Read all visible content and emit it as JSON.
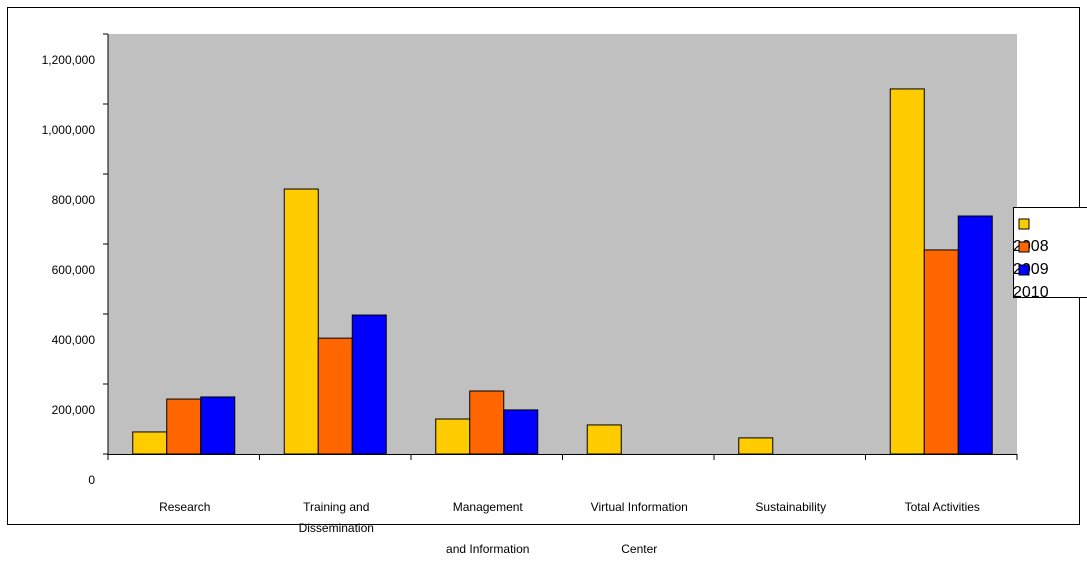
{
  "chart_data": {
    "type": "bar",
    "categories": [
      [
        "Research"
      ],
      [
        "Training and",
        "Dissemination"
      ],
      [
        "Management",
        "and Information"
      ],
      [
        "Virtual Information",
        "Center"
      ],
      [
        "Sustainability"
      ],
      [
        "Total Activities"
      ]
    ],
    "series": [
      {
        "name": "2008",
        "color": "#ffcc00",
        "values": [
          63000,
          757000,
          100000,
          83000,
          46000,
          1043000
        ]
      },
      {
        "name": "2009",
        "color": "#ff6600",
        "values": [
          157000,
          331000,
          180000,
          null,
          null,
          583000
        ]
      },
      {
        "name": "2010",
        "color": "#0000ff",
        "values": [
          163000,
          397000,
          126000,
          null,
          null,
          680000
        ]
      }
    ],
    "ylim": [
      0,
      1200000
    ],
    "yticks": [
      0,
      {
        "value": 200000,
        "label": "200,000"
      },
      {
        "value": 400000,
        "label": "400,000"
      },
      {
        "value": 600000,
        "label": "600,000"
      },
      {
        "value": 800000,
        "label": "800,000"
      },
      {
        "value": 1000000,
        "label": "1,000,000"
      },
      {
        "value": 1200000,
        "label": "1,200,000"
      }
    ],
    "plot_background": "#c0c0c0",
    "legend": "right"
  }
}
